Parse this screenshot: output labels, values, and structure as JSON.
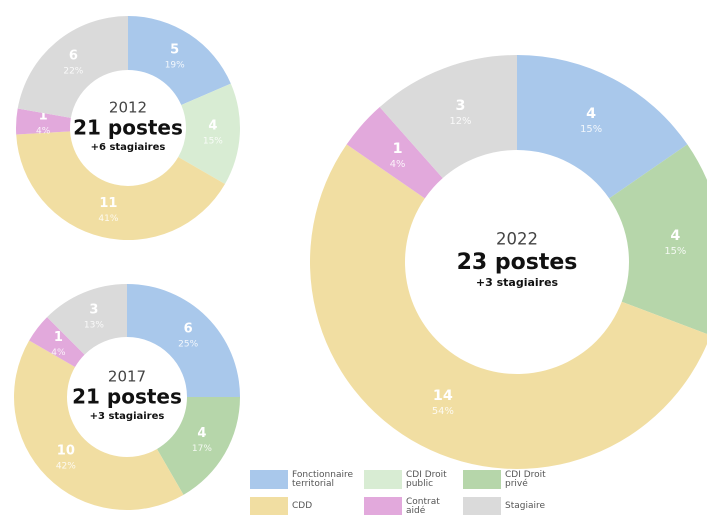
{
  "chart_data": [
    {
      "type": "pie",
      "title": "2012",
      "subtitle": "21 postes",
      "annotation": "+6 stagiaires",
      "categories": [
        "Fonctionnaire territorial",
        "CDI Droit public",
        "CDD",
        "Contrat aidé",
        "Stagiaire"
      ],
      "values": [
        5,
        4,
        11,
        1,
        6
      ],
      "value_labels": [
        "19%",
        "15%",
        "41%",
        "4%",
        "22%"
      ],
      "colors": [
        "#a9c8eb",
        "#d8ecd3",
        "#f1dea2",
        "#e2a9dc",
        "#dadada"
      ]
    },
    {
      "type": "pie",
      "title": "2017",
      "subtitle": "21 postes",
      "annotation": "+3 stagiaires",
      "categories": [
        "Fonctionnaire territorial",
        "CDI Droit privé",
        "CDD",
        "Contrat aidé",
        "Stagiaire"
      ],
      "values": [
        6,
        4,
        10,
        1,
        3
      ],
      "value_labels": [
        "25%",
        "17%",
        "42%",
        "4%",
        "13%"
      ],
      "colors": [
        "#a9c8eb",
        "#b6d6aa",
        "#f1dea2",
        "#e2a9dc",
        "#dadada"
      ]
    },
    {
      "type": "pie",
      "title": "2022",
      "subtitle": "23 postes",
      "annotation": "+3 stagiaires",
      "categories": [
        "Fonctionnaire territorial",
        "CDI Droit privé",
        "CDD",
        "Contrat aidé",
        "Stagiaire"
      ],
      "values": [
        4,
        4,
        14,
        1,
        3
      ],
      "value_labels": [
        "15%",
        "15%",
        "54%",
        "4%",
        "12%"
      ],
      "colors": [
        "#a9c8eb",
        "#b6d6aa",
        "#f1dea2",
        "#e2a9dc",
        "#dadada"
      ]
    }
  ],
  "legend": [
    {
      "name": "Fonctionnaire territorial",
      "color": "#a9c8eb"
    },
    {
      "name": "CDI Droit public",
      "color": "#d8ecd3"
    },
    {
      "name": "CDI Droit privé",
      "color": "#b6d6aa"
    },
    {
      "name": "CDD",
      "color": "#f1dea2"
    },
    {
      "name": "Contrat aidé",
      "color": "#e2a9dc"
    },
    {
      "name": "Stagiaire",
      "color": "#dadada"
    }
  ]
}
